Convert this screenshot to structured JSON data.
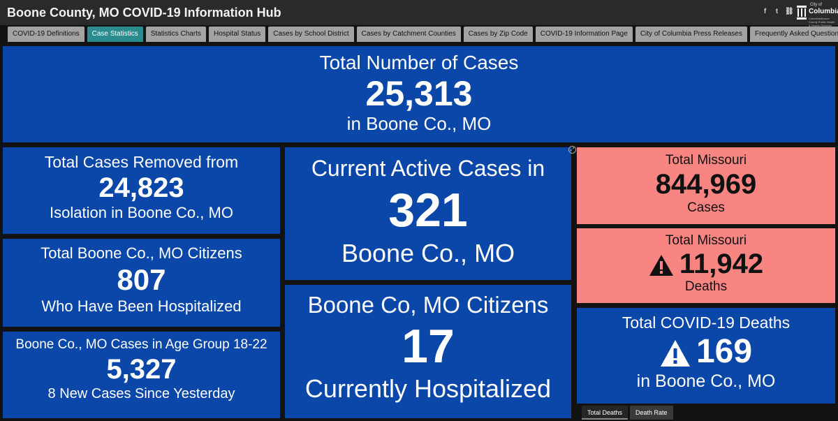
{
  "header": {
    "title": "Boone County, MO COVID-19 Information Hub",
    "logo": {
      "city": "City of",
      "name": "Columbia",
      "sub": "Columbia/Boone County Public Health & Human Services"
    }
  },
  "tabs": [
    {
      "label": "COVID-19 Definitions",
      "active": false
    },
    {
      "label": "Case Statistics",
      "active": true
    },
    {
      "label": "Statistics Charts",
      "active": false
    },
    {
      "label": "Hospital Status",
      "active": false
    },
    {
      "label": "Cases by School District",
      "active": false
    },
    {
      "label": "Cases by Catchment Counties",
      "active": false
    },
    {
      "label": "Cases by Zip Code",
      "active": false
    },
    {
      "label": "COVID-19 Information Page",
      "active": false
    },
    {
      "label": "City of Columbia Press Releases",
      "active": false
    },
    {
      "label": "Frequently Asked Questions",
      "active": false
    }
  ],
  "panels": {
    "total_cases": {
      "line1": "Total Number of Cases",
      "value": "25,313",
      "line3": "in Boone Co., MO"
    },
    "removed": {
      "line1": "Total Cases Removed from",
      "value": "24,823",
      "line3": "Isolation in Boone Co., MO"
    },
    "hosp_total": {
      "line1": "Total Boone Co., MO Citizens",
      "value": "807",
      "line3": "Who Have Been Hospitalized"
    },
    "age_group": {
      "line1": "Boone Co., MO Cases in Age Group 18-22",
      "value": "5,327",
      "line3": "8 New Cases Since Yesterday"
    },
    "active": {
      "line1": "Current Active Cases in",
      "value": "321",
      "line3": "Boone Co., MO"
    },
    "current_hosp": {
      "line1": "Boone Co, MO Citizens",
      "value": "17",
      "line3": "Currently Hospitalized"
    },
    "mo_cases": {
      "line1": "Total Missouri",
      "value": "844,969",
      "line3": "Cases"
    },
    "mo_deaths": {
      "line1": "Total Missouri",
      "value": "11,942",
      "line3": "Deaths"
    },
    "boone_deaths": {
      "line1": "Total COVID-19 Deaths",
      "value": "169",
      "line3": "in Boone Co., MO"
    }
  },
  "subtabs": [
    {
      "label": "Total Deaths",
      "active": true
    },
    {
      "label": "Death Rate",
      "active": false
    }
  ],
  "colors": {
    "panel_blue": "#0a47a9",
    "panel_pink": "#f98583",
    "active_tab": "#2a8c8e"
  }
}
